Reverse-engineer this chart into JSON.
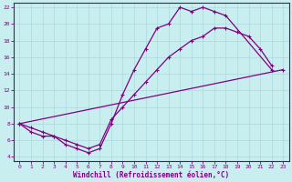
{
  "xlabel": "Windchill (Refroidissement éolien,°C)",
  "bg_color": "#c8eef0",
  "grid_color": "#b0dde0",
  "line_color": "#800080",
  "xlim": [
    -0.5,
    23.5
  ],
  "ylim": [
    3.5,
    22.5
  ],
  "xticks": [
    0,
    1,
    2,
    3,
    4,
    5,
    6,
    7,
    8,
    9,
    10,
    11,
    12,
    13,
    14,
    15,
    16,
    17,
    18,
    19,
    20,
    21,
    22,
    23
  ],
  "yticks": [
    4,
    6,
    8,
    10,
    12,
    14,
    16,
    18,
    20,
    22
  ],
  "line1_x": [
    0,
    1,
    2,
    3,
    4,
    5,
    6,
    7,
    8,
    9,
    10,
    11,
    12,
    13,
    14,
    15,
    16,
    17,
    18,
    22
  ],
  "line1_y": [
    8,
    7,
    6.5,
    6.5,
    5.5,
    5.0,
    4.5,
    5.0,
    8.0,
    11.5,
    14.5,
    17.0,
    19.5,
    20.0,
    22.0,
    21.5,
    22.0,
    21.5,
    21.0,
    14.5
  ],
  "line2_x": [
    0,
    23
  ],
  "line2_y": [
    8,
    14.5
  ],
  "line3_x": [
    0,
    1,
    2,
    3,
    4,
    5,
    6,
    7,
    8,
    9,
    10,
    11,
    12,
    13,
    14,
    15,
    16,
    17,
    18,
    19,
    20,
    21,
    22
  ],
  "line3_y": [
    8,
    7.5,
    7.0,
    6.5,
    6.0,
    5.5,
    5.0,
    5.5,
    8.5,
    10.0,
    11.5,
    13.0,
    14.5,
    16.0,
    17.0,
    18.0,
    18.5,
    19.5,
    19.5,
    19.0,
    18.5,
    17.0,
    15.0
  ]
}
